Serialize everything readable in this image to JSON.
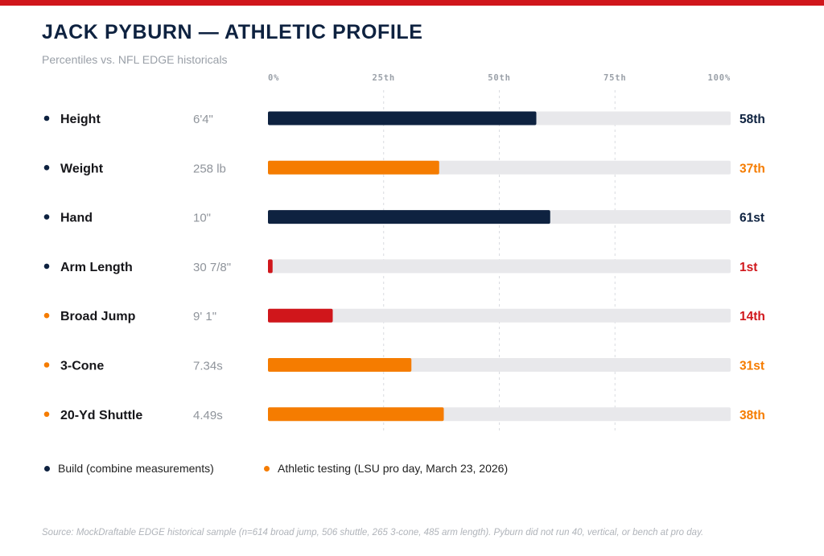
{
  "title": "JACK PYBURN — ATHLETIC PROFILE",
  "subtitle": "Percentiles vs. NFL EDGE historicals",
  "colors": {
    "navy": "#0e2240",
    "orange": "#f57c00",
    "red": "#d0161b",
    "track": "#e8e8eb",
    "measure_text": "#8f949b"
  },
  "chart_data": {
    "type": "bar",
    "orientation": "horizontal",
    "xlim": [
      0,
      100
    ],
    "ticks": [
      "0%",
      "25th",
      "50th",
      "75th",
      "100%"
    ],
    "tick_values": [
      0,
      25,
      50,
      75,
      100
    ],
    "grid": true,
    "rows": [
      {
        "metric": "Height",
        "measure": "6'4\"",
        "percentile": 58,
        "label": "58th",
        "group": "build",
        "bar_color": "navy"
      },
      {
        "metric": "Weight",
        "measure": "258 lb",
        "percentile": 37,
        "label": "37th",
        "group": "build",
        "bar_color": "orange"
      },
      {
        "metric": "Hand",
        "measure": "10\"",
        "percentile": 61,
        "label": "61st",
        "group": "build",
        "bar_color": "navy"
      },
      {
        "metric": "Arm Length",
        "measure": "30 7/8\"",
        "percentile": 1,
        "label": "1st",
        "group": "build",
        "bar_color": "red"
      },
      {
        "metric": "Broad Jump",
        "measure": "9' 1\"",
        "percentile": 14,
        "label": "14th",
        "group": "athletic",
        "bar_color": "red"
      },
      {
        "metric": "3-Cone",
        "measure": "7.34s",
        "percentile": 31,
        "label": "31st",
        "group": "athletic",
        "bar_color": "orange"
      },
      {
        "metric": "20-Yd Shuttle",
        "measure": "4.49s",
        "percentile": 38,
        "label": "38th",
        "group": "athletic",
        "bar_color": "orange"
      }
    ]
  },
  "legend": {
    "build": {
      "label": "Build (combine measurements)",
      "color": "navy"
    },
    "athletic": {
      "label": "Athletic testing (LSU pro day, March 23, 2026)",
      "color": "orange"
    }
  },
  "source": "Source: MockDraftable EDGE historical sample (n=614 broad jump, 506 shuttle, 265 3-cone, 485 arm length). Pyburn did not run 40, vertical, or bench at pro day."
}
